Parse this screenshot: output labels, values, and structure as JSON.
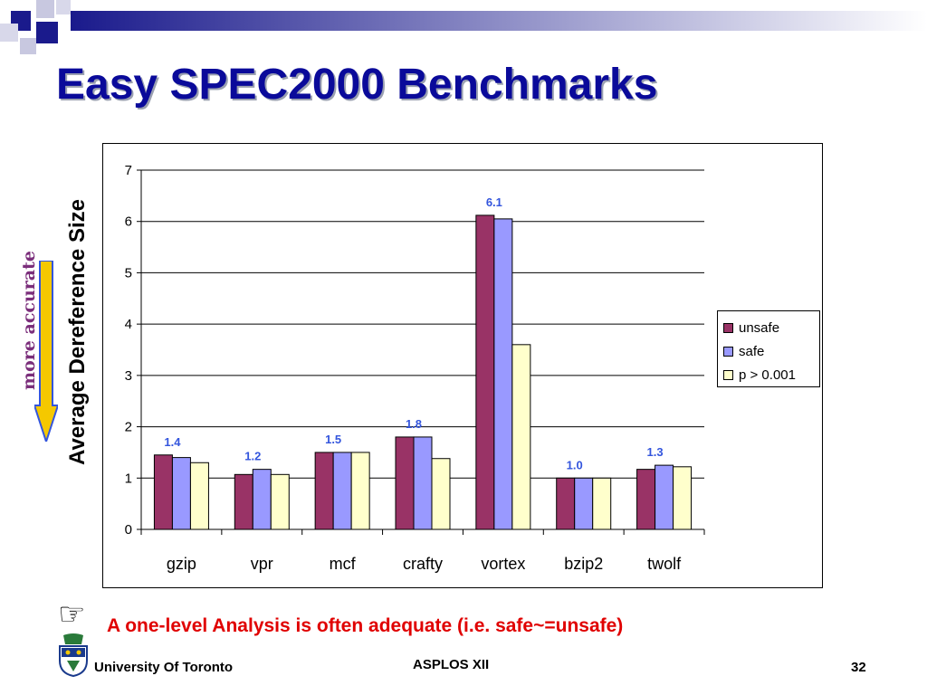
{
  "slide": {
    "title": "Easy SPEC2000 Benchmarks",
    "accuracy_label": "more accurate",
    "note": "A one-level Analysis is often adequate (i.e. safe~=unsafe)",
    "footer": {
      "organization": "University Of Toronto",
      "conference": "ASPLOS XII",
      "page_number": "32"
    },
    "icons": [
      "pointing-hand-icon",
      "university-crest-icon",
      "down-arrow-icon"
    ],
    "colors": {
      "title": "#0a0a9a",
      "note": "#e00000",
      "accuracy_label": "#7b2e7b",
      "data_label": "#3355dd",
      "arrow_fill": "#f5c800"
    }
  },
  "chart_data": {
    "type": "bar",
    "ylabel": "Average Dereference Size",
    "xlabel": "",
    "ylim": [
      0,
      7
    ],
    "yticks": [
      "0",
      "1",
      "2",
      "3",
      "4",
      "5",
      "6",
      "7"
    ],
    "grid": true,
    "legend_position": "right",
    "categories": [
      "gzip",
      "vpr",
      "mcf",
      "crafty",
      "vortex",
      "bzip2",
      "twolf"
    ],
    "series": [
      {
        "name": "unsafe",
        "color": "#993366",
        "values": [
          1.45,
          1.07,
          1.5,
          1.8,
          6.12,
          1.0,
          1.17
        ]
      },
      {
        "name": "safe",
        "color": "#9999ff",
        "values": [
          1.4,
          1.17,
          1.5,
          1.8,
          6.05,
          1.0,
          1.25
        ]
      },
      {
        "name": "p > 0.001",
        "color": "#ffffcc",
        "values": [
          1.3,
          1.07,
          1.5,
          1.38,
          3.6,
          1.0,
          1.22
        ]
      }
    ],
    "data_labels": [
      "1.4",
      "1.2",
      "1.5",
      "1.8",
      "6.1",
      "1.0",
      "1.3"
    ]
  }
}
